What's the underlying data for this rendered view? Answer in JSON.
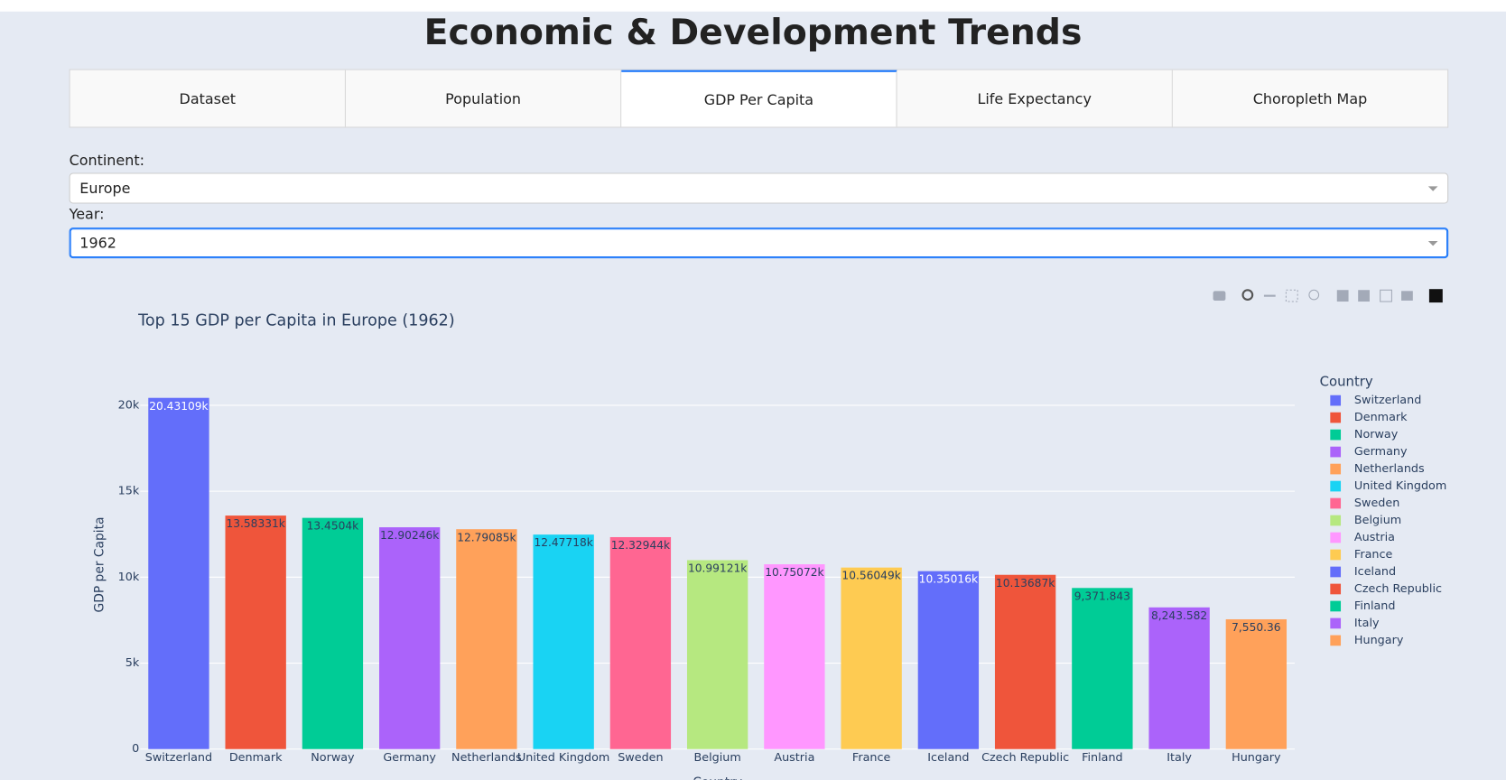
{
  "header": {
    "title": "Economic & Development Trends"
  },
  "tabs": {
    "items": [
      "Dataset",
      "Population",
      "GDP Per Capita",
      "Life Expectancy",
      "Choropleth Map"
    ],
    "selected": 2
  },
  "filters": [
    {
      "label": "Continent:",
      "value": "Europe"
    },
    {
      "label": "Year:",
      "value": "1962"
    }
  ],
  "chart_data": {
    "type": "bar",
    "title": "Top 15 GDP per Capita in Europe (1962)",
    "x_label": "Country",
    "y_label": "GDP per Capita",
    "legend_title": "Country",
    "categories": [
      "Switzerland",
      "Denmark",
      "Norway",
      "Germany",
      "Netherlands",
      "United Kingdom",
      "Sweden",
      "Belgium",
      "Austria",
      "France",
      "Iceland",
      "Czech Republic",
      "Finland",
      "Italy",
      "Hungary"
    ],
    "values": [
      20431.09,
      13583.31,
      13450.4,
      12902.46,
      12790.85,
      12477.18,
      12329.44,
      10991.21,
      10750.72,
      10560.49,
      10350.16,
      10136.87,
      9371.843,
      8243.582,
      7550.36
    ],
    "value_labels": [
      "20.43109k",
      "13.58331k",
      "13.4504k",
      "12.90246k",
      "12.79085k",
      "12.47718k",
      "12.32944k",
      "10.99121k",
      "10.75072k",
      "10.56049k",
      "10.35016k",
      "10.13687k",
      "9,371.843",
      "8,243.582",
      "7,550.36"
    ],
    "colors": [
      "#636efa",
      "#ef553b",
      "#00cc96",
      "#ab63fa",
      "#ffa15a",
      "#19d3f3",
      "#ff6692",
      "#b6e880",
      "#ff97ff",
      "#fecb52",
      "#636efa",
      "#ef553b",
      "#00cc96",
      "#ab63fa",
      "#ffa15a"
    ],
    "ylim": [
      0,
      21453
    ],
    "yticks": [
      0,
      {
        "value": 5000,
        "label": "5k"
      },
      {
        "value": 10000,
        "label": "10k"
      },
      {
        "value": 15000,
        "label": "15k"
      },
      {
        "value": 20000,
        "label": "20k"
      }
    ],
    "grid": true
  }
}
